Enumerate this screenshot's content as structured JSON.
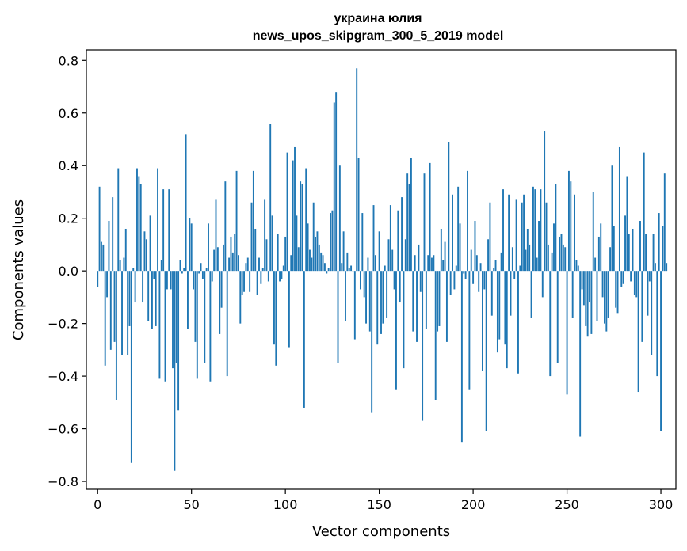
{
  "chart_data": {
    "type": "bar",
    "title": "украина юлия",
    "subtitle": "news_upos_skipgram_300_5_2019 model",
    "xlabel": "Vector components",
    "ylabel": "Components values",
    "xlim": [
      -6,
      308
    ],
    "ylim": [
      -0.83,
      0.84
    ],
    "x_ticks": [
      0,
      50,
      100,
      150,
      200,
      250,
      300
    ],
    "x_tick_labels": [
      "0",
      "50",
      "100",
      "150",
      "200",
      "250",
      "300"
    ],
    "y_ticks": [
      -0.8,
      -0.6,
      -0.4,
      -0.2,
      0.0,
      0.2,
      0.4,
      0.6,
      0.8
    ],
    "y_tick_labels": [
      "−0.8",
      "−0.6",
      "−0.4",
      "−0.2",
      "0.0",
      "0.2",
      "0.4",
      "0.6",
      "0.8"
    ],
    "bar_color": "#1f77b4",
    "grid": false,
    "values": [
      -0.06,
      0.32,
      0.11,
      0.1,
      -0.36,
      -0.1,
      0.19,
      -0.3,
      0.28,
      -0.27,
      -0.49,
      0.39,
      0.04,
      -0.32,
      0.05,
      0.16,
      -0.32,
      -0.21,
      -0.73,
      0.01,
      -0.12,
      0.39,
      0.36,
      0.33,
      -0.12,
      0.15,
      0.12,
      -0.19,
      0.21,
      -0.22,
      -0.03,
      -0.21,
      0.39,
      -0.41,
      0.04,
      0.31,
      -0.42,
      -0.07,
      0.31,
      -0.07,
      -0.37,
      -0.76,
      -0.35,
      -0.53,
      0.04,
      -0.01,
      0.01,
      0.52,
      -0.22,
      0.2,
      0.18,
      -0.07,
      -0.27,
      -0.41,
      -0.01,
      0.03,
      -0.03,
      -0.35,
      0.01,
      0.18,
      -0.42,
      -0.04,
      0.08,
      0.27,
      0.09,
      -0.24,
      -0.14,
      0.1,
      0.34,
      -0.4,
      0.05,
      0.13,
      0.07,
      0.14,
      0.38,
      0.06,
      -0.2,
      -0.09,
      -0.08,
      0.03,
      0.05,
      -0.08,
      0.26,
      0.38,
      0.16,
      -0.09,
      0.05,
      -0.05,
      0.01,
      0.27,
      0.12,
      -0.04,
      0.56,
      0.21,
      -0.28,
      -0.36,
      0.14,
      -0.04,
      -0.03,
      0.02,
      0.13,
      0.45,
      -0.29,
      0.06,
      0.42,
      0.47,
      0.21,
      0.09,
      0.34,
      0.33,
      -0.52,
      0.39,
      0.18,
      0.08,
      0.05,
      0.26,
      0.13,
      0.15,
      0.1,
      0.07,
      0.06,
      0.03,
      -0.01,
      0.01,
      0.22,
      0.23,
      0.64,
      0.68,
      -0.35,
      0.4,
      0.03,
      0.15,
      -0.19,
      0.07,
      0.01,
      0.02,
      0.0,
      -0.26,
      0.77,
      0.43,
      -0.07,
      0.22,
      -0.1,
      -0.2,
      0.05,
      -0.23,
      -0.54,
      0.25,
      0.06,
      -0.28,
      0.15,
      -0.24,
      -0.2,
      0.02,
      -0.18,
      0.12,
      0.25,
      0.08,
      -0.07,
      -0.45,
      0.23,
      -0.12,
      0.28,
      -0.37,
      0.12,
      0.37,
      0.33,
      0.43,
      -0.23,
      0.06,
      -0.27,
      0.1,
      -0.08,
      -0.57,
      0.37,
      -0.22,
      0.06,
      0.41,
      0.05,
      0.06,
      -0.49,
      -0.23,
      -0.21,
      0.16,
      0.04,
      0.11,
      -0.27,
      0.49,
      -0.09,
      0.29,
      -0.07,
      0.02,
      0.32,
      0.18,
      -0.65,
      -0.01,
      -0.03,
      0.38,
      -0.45,
      0.08,
      -0.05,
      0.19,
      0.06,
      -0.08,
      0.03,
      -0.38,
      -0.07,
      -0.61,
      0.12,
      0.26,
      -0.17,
      0.01,
      0.04,
      -0.31,
      -0.26,
      0.07,
      0.31,
      -0.28,
      -0.37,
      0.29,
      -0.17,
      0.09,
      -0.03,
      0.27,
      -0.39,
      0.02,
      0.26,
      0.29,
      0.08,
      0.16,
      0.1,
      -0.18,
      0.32,
      0.31,
      0.05,
      0.19,
      0.31,
      -0.1,
      0.53,
      0.26,
      0.1,
      -0.4,
      0.07,
      0.18,
      0.33,
      -0.35,
      0.13,
      0.14,
      0.1,
      0.09,
      -0.47,
      0.38,
      0.34,
      -0.18,
      0.29,
      0.04,
      0.02,
      -0.63,
      -0.07,
      -0.13,
      -0.21,
      -0.25,
      -0.12,
      -0.24,
      0.3,
      0.05,
      -0.19,
      0.13,
      0.18,
      -0.1,
      -0.2,
      -0.23,
      -0.18,
      0.09,
      0.4,
      0.17,
      -0.14,
      -0.16,
      0.47,
      -0.06,
      -0.05,
      0.21,
      0.36,
      0.14,
      -0.04,
      0.16,
      -0.09,
      -0.1,
      -0.46,
      0.19,
      -0.27,
      0.45,
      0.14,
      -0.17,
      -0.04,
      -0.32,
      0.14,
      0.03,
      -0.4,
      0.22,
      -0.61,
      0.17,
      0.37,
      0.03
    ]
  }
}
